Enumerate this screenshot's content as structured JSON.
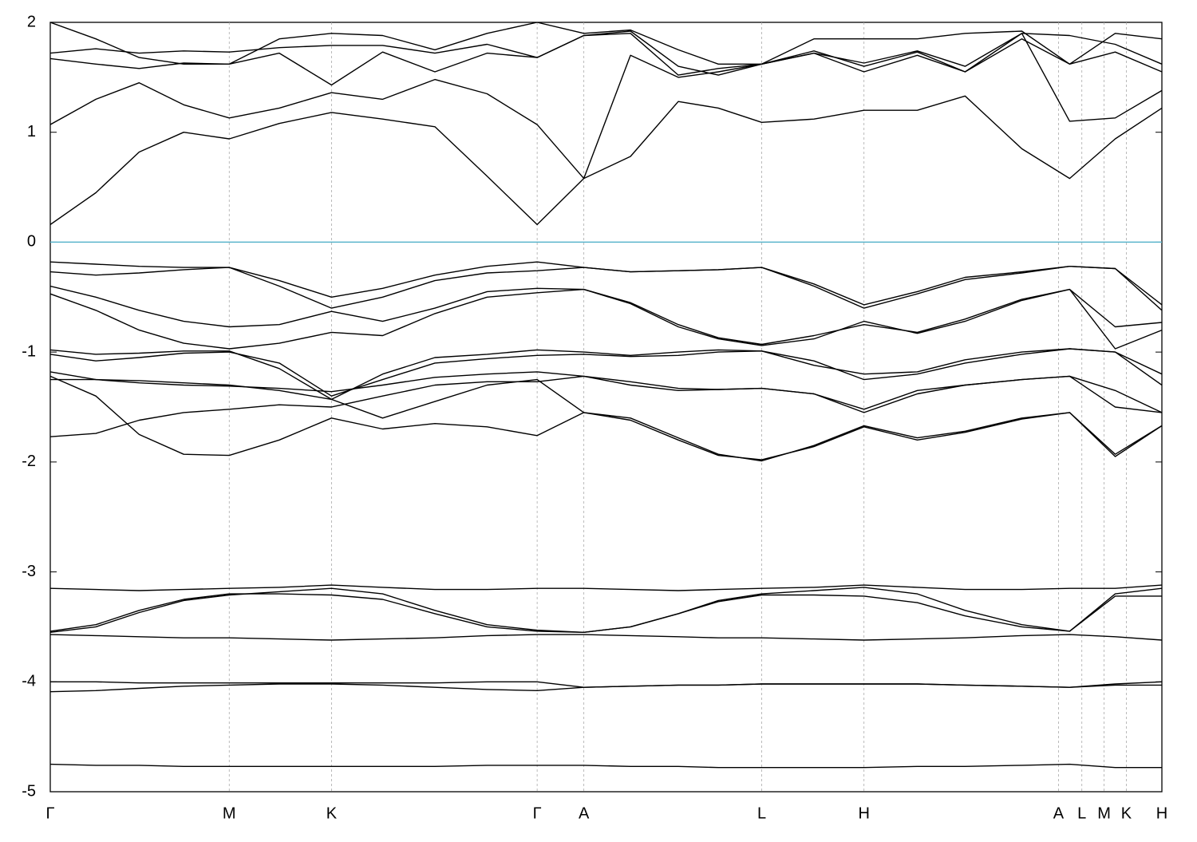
{
  "chart_data": {
    "type": "line",
    "x": [
      0,
      0.041,
      0.08,
      0.12,
      0.161,
      0.206,
      0.253,
      0.299,
      0.346,
      0.393,
      0.438,
      0.48,
      0.522,
      0.565,
      0.601,
      0.64,
      0.687,
      0.732,
      0.78,
      0.823,
      0.874,
      0.917,
      0.958,
      1
    ],
    "xlim": [
      0,
      1
    ],
    "xticks": [
      {
        "value": 0,
        "label": "Γ"
      },
      {
        "value": 0.161,
        "label": "M"
      },
      {
        "value": 0.253,
        "label": "K"
      },
      {
        "value": 0.438,
        "label": "Γ"
      },
      {
        "value": 0.48,
        "label": "A"
      },
      {
        "value": 0.64,
        "label": "L"
      },
      {
        "value": 0.732,
        "label": "H"
      },
      {
        "value": 0.907,
        "label": "A"
      },
      {
        "value": 0.928,
        "label": "L"
      },
      {
        "value": 0.948,
        "label": "M"
      },
      {
        "value": 0.968,
        "label": "K"
      },
      {
        "value": 1,
        "label": "H"
      }
    ],
    "ylim": [
      -5,
      2
    ],
    "yticks": [
      -5,
      -4,
      -3,
      -2,
      -1,
      0,
      1,
      2
    ],
    "grid": true,
    "hlines": [
      0
    ],
    "hline_color": "#5ab4cc",
    "series": [
      {
        "color": "#000000",
        "values": [
          0.16,
          0.45,
          0.82,
          1.0,
          0.94,
          1.08,
          1.18,
          1.12,
          1.05,
          0.6,
          0.16,
          0.58,
          0.78,
          1.28,
          1.22,
          1.09,
          1.12,
          1.2,
          1.2,
          1.33,
          0.85,
          0.58,
          0.94,
          1.22
        ]
      },
      {
        "color": "#000000",
        "values": [
          1.07,
          1.3,
          1.45,
          1.25,
          1.13,
          1.22,
          1.36,
          1.3,
          1.48,
          1.35,
          1.07,
          0.58,
          1.7,
          1.5,
          1.55,
          1.62,
          1.72,
          1.55,
          1.7,
          1.55,
          1.9,
          1.1,
          1.13,
          1.38
        ]
      },
      {
        "color": "#000000",
        "values": [
          1.67,
          1.62,
          1.58,
          1.63,
          1.62,
          1.72,
          1.43,
          1.73,
          1.55,
          1.72,
          1.68,
          1.88,
          1.9,
          1.52,
          1.58,
          1.62,
          1.74,
          1.6,
          1.73,
          1.55,
          1.85,
          1.62,
          1.73,
          1.55
        ]
      },
      {
        "color": "#000000",
        "values": [
          1.72,
          1.76,
          1.72,
          1.74,
          1.73,
          1.77,
          1.79,
          1.79,
          1.72,
          1.8,
          1.68,
          1.88,
          1.92,
          1.6,
          1.52,
          1.62,
          1.72,
          1.63,
          1.74,
          1.6,
          1.9,
          1.88,
          1.8,
          1.62
        ]
      },
      {
        "color": "#000000",
        "values": [
          2.0,
          1.85,
          1.68,
          1.62,
          1.62,
          1.85,
          1.9,
          1.88,
          1.75,
          1.9,
          2.0,
          1.9,
          1.93,
          1.75,
          1.62,
          1.62,
          1.85,
          1.85,
          1.85,
          1.9,
          1.92,
          1.62,
          1.9,
          1.85
        ]
      },
      {
        "color": "#000000",
        "values": [
          -0.18,
          -0.2,
          -0.22,
          -0.23,
          -0.23,
          -0.35,
          -0.5,
          -0.42,
          -0.3,
          -0.22,
          -0.18,
          -0.23,
          -0.27,
          -0.26,
          -0.25,
          -0.23,
          -0.38,
          -0.57,
          -0.45,
          -0.32,
          -0.27,
          -0.22,
          -0.24,
          -0.57
        ]
      },
      {
        "color": "#000000",
        "values": [
          -0.27,
          -0.3,
          -0.28,
          -0.25,
          -0.23,
          -0.4,
          -0.6,
          -0.5,
          -0.35,
          -0.28,
          -0.26,
          -0.23,
          -0.27,
          -0.26,
          -0.25,
          -0.23,
          -0.4,
          -0.6,
          -0.47,
          -0.34,
          -0.28,
          -0.22,
          -0.24,
          -0.62
        ]
      },
      {
        "color": "#000000",
        "values": [
          -0.4,
          -0.5,
          -0.62,
          -0.72,
          -0.77,
          -0.75,
          -0.63,
          -0.72,
          -0.6,
          -0.45,
          -0.42,
          -0.43,
          -0.55,
          -0.75,
          -0.87,
          -0.93,
          -0.85,
          -0.75,
          -0.82,
          -0.7,
          -0.52,
          -0.43,
          -0.77,
          -0.73
        ]
      },
      {
        "color": "#000000",
        "values": [
          -0.47,
          -0.62,
          -0.8,
          -0.92,
          -0.97,
          -0.92,
          -0.82,
          -0.85,
          -0.65,
          -0.5,
          -0.46,
          -0.43,
          -0.56,
          -0.77,
          -0.88,
          -0.94,
          -0.88,
          -0.72,
          -0.83,
          -0.72,
          -0.53,
          -0.43,
          -0.97,
          -0.8
        ]
      },
      {
        "color": "#000000",
        "values": [
          -0.98,
          -1.02,
          -1.01,
          -0.99,
          -0.99,
          -1.15,
          -1.43,
          -1.2,
          -1.05,
          -1.02,
          -0.98,
          -1.0,
          -1.03,
          -1.0,
          -0.98,
          -0.99,
          -1.12,
          -1.2,
          -1.18,
          -1.07,
          -1.0,
          -0.97,
          -1.0,
          -1.2
        ]
      },
      {
        "color": "#000000",
        "values": [
          -1.02,
          -1.08,
          -1.05,
          -1.01,
          -1.0,
          -1.1,
          -1.4,
          -1.25,
          -1.1,
          -1.06,
          -1.03,
          -1.02,
          -1.04,
          -1.03,
          -1.0,
          -0.99,
          -1.08,
          -1.25,
          -1.2,
          -1.1,
          -1.02,
          -0.97,
          -1.0,
          -1.3
        ]
      },
      {
        "color": "#000000",
        "values": [
          -1.18,
          -1.25,
          -1.28,
          -1.3,
          -1.31,
          -1.33,
          -1.36,
          -1.3,
          -1.23,
          -1.2,
          -1.18,
          -1.22,
          -1.27,
          -1.33,
          -1.34,
          -1.33,
          -1.38,
          -1.52,
          -1.35,
          -1.3,
          -1.25,
          -1.22,
          -1.5,
          -1.55
        ]
      },
      {
        "color": "#000000",
        "values": [
          -1.25,
          -1.25,
          -1.26,
          -1.28,
          -1.3,
          -1.35,
          -1.43,
          -1.6,
          -1.45,
          -1.3,
          -1.25,
          -1.55,
          -1.6,
          -1.78,
          -1.93,
          -1.99,
          -1.85,
          -1.67,
          -1.78,
          -1.72,
          -1.6,
          -1.55,
          -1.95,
          -1.67
        ]
      },
      {
        "color": "#000000",
        "values": [
          -1.22,
          -1.4,
          -1.75,
          -1.93,
          -1.94,
          -1.8,
          -1.6,
          -1.7,
          -1.65,
          -1.68,
          -1.76,
          -1.55,
          -1.62,
          -1.8,
          -1.94,
          -1.98,
          -1.86,
          -1.68,
          -1.8,
          -1.73,
          -1.61,
          -1.55,
          -1.93,
          -1.67
        ]
      },
      {
        "color": "#000000",
        "values": [
          -1.77,
          -1.74,
          -1.62,
          -1.55,
          -1.52,
          -1.48,
          -1.5,
          -1.4,
          -1.3,
          -1.27,
          -1.27,
          -1.22,
          -1.3,
          -1.35,
          -1.34,
          -1.33,
          -1.38,
          -1.55,
          -1.38,
          -1.3,
          -1.25,
          -1.22,
          -1.35,
          -1.55
        ]
      },
      {
        "color": "#000000",
        "values": [
          -3.15,
          -3.16,
          -3.17,
          -3.16,
          -3.15,
          -3.14,
          -3.12,
          -3.14,
          -3.16,
          -3.16,
          -3.15,
          -3.15,
          -3.16,
          -3.17,
          -3.16,
          -3.15,
          -3.14,
          -3.12,
          -3.14,
          -3.16,
          -3.16,
          -3.15,
          -3.15,
          -3.12
        ]
      },
      {
        "color": "#000000",
        "values": [
          -3.54,
          -3.48,
          -3.35,
          -3.25,
          -3.2,
          -3.2,
          -3.21,
          -3.25,
          -3.38,
          -3.5,
          -3.54,
          -3.55,
          -3.5,
          -3.38,
          -3.27,
          -3.21,
          -3.21,
          -3.22,
          -3.28,
          -3.4,
          -3.5,
          -3.54,
          -3.22,
          -3.22
        ]
      },
      {
        "color": "#000000",
        "values": [
          -3.55,
          -3.5,
          -3.37,
          -3.26,
          -3.21,
          -3.18,
          -3.15,
          -3.2,
          -3.35,
          -3.48,
          -3.53,
          -3.55,
          -3.5,
          -3.38,
          -3.26,
          -3.2,
          -3.17,
          -3.14,
          -3.2,
          -3.35,
          -3.48,
          -3.54,
          -3.2,
          -3.15
        ]
      },
      {
        "color": "#000000",
        "values": [
          -3.57,
          -3.58,
          -3.59,
          -3.6,
          -3.6,
          -3.61,
          -3.62,
          -3.61,
          -3.6,
          -3.58,
          -3.57,
          -3.57,
          -3.58,
          -3.59,
          -3.6,
          -3.6,
          -3.61,
          -3.62,
          -3.61,
          -3.6,
          -3.58,
          -3.57,
          -3.59,
          -3.62
        ]
      },
      {
        "color": "#000000",
        "values": [
          -4.0,
          -4.0,
          -4.01,
          -4.01,
          -4.01,
          -4.01,
          -4.01,
          -4.01,
          -4.01,
          -4.0,
          -4.0,
          -4.05,
          -4.04,
          -4.03,
          -4.03,
          -4.02,
          -4.02,
          -4.02,
          -4.02,
          -4.03,
          -4.04,
          -4.05,
          -4.02,
          -4.0
        ]
      },
      {
        "color": "#000000",
        "values": [
          -4.09,
          -4.08,
          -4.06,
          -4.04,
          -4.03,
          -4.02,
          -4.02,
          -4.03,
          -4.05,
          -4.07,
          -4.08,
          -4.05,
          -4.04,
          -4.03,
          -4.03,
          -4.02,
          -4.02,
          -4.02,
          -4.02,
          -4.03,
          -4.04,
          -4.05,
          -4.03,
          -4.03
        ]
      },
      {
        "color": "#000000",
        "values": [
          -4.75,
          -4.76,
          -4.76,
          -4.77,
          -4.77,
          -4.77,
          -4.77,
          -4.77,
          -4.77,
          -4.76,
          -4.76,
          -4.76,
          -4.77,
          -4.77,
          -4.78,
          -4.78,
          -4.78,
          -4.78,
          -4.77,
          -4.77,
          -4.76,
          -4.75,
          -4.78,
          -4.78
        ]
      }
    ]
  }
}
